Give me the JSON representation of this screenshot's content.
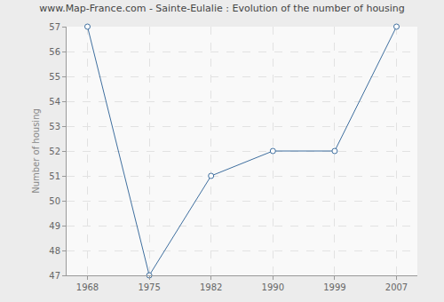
{
  "chart_data": {
    "type": "line",
    "title": "www.Map-France.com - Sainte-Eulalie : Evolution of the number of housing",
    "y_label": "Number of housing",
    "categories": [
      "1968",
      "1975",
      "1982",
      "1990",
      "1999",
      "2007"
    ],
    "values": [
      57,
      47,
      51,
      52,
      52,
      57
    ],
    "color": "#3f6f9f",
    "marker": "circle",
    "ylim": [
      47,
      57
    ],
    "yticks": [
      47,
      48,
      49,
      50,
      51,
      52,
      53,
      54,
      55,
      56,
      57
    ],
    "grid": true
  }
}
